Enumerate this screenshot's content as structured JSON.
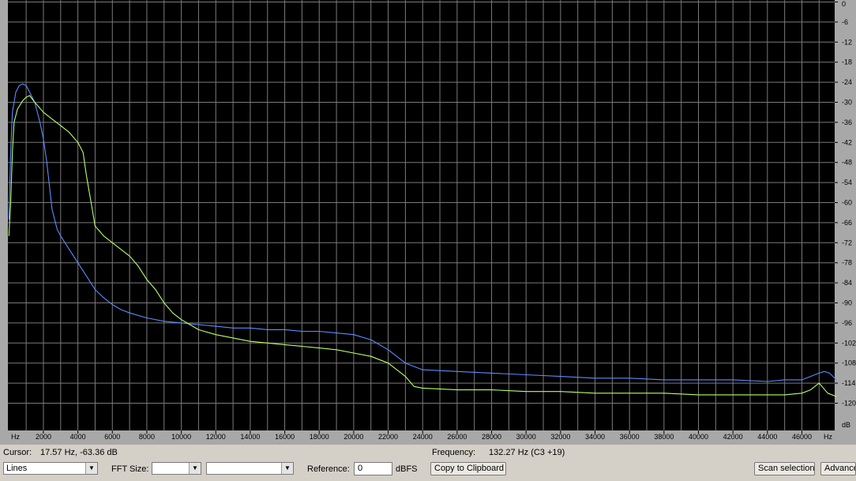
{
  "chart_data": {
    "type": "line",
    "x_unit_label": "Hz",
    "y_unit_label": "dB",
    "xlim": [
      0,
      48000
    ],
    "ylim": [
      -125,
      0
    ],
    "x_ticks": [
      "2000",
      "4000",
      "6000",
      "8000",
      "10000",
      "12000",
      "14000",
      "16000",
      "18000",
      "20000",
      "22000",
      "24000",
      "26000",
      "28000",
      "30000",
      "32000",
      "34000",
      "36000",
      "38000",
      "40000",
      "42000",
      "44000",
      "46000"
    ],
    "y_ticks": [
      "0",
      "-6",
      "-12",
      "-18",
      "-24",
      "-30",
      "-36",
      "-42",
      "-48",
      "-54",
      "-60",
      "-66",
      "-72",
      "-78",
      "-84",
      "-90",
      "-96",
      "-102",
      "-108",
      "-114",
      "-120"
    ],
    "grid": true,
    "series": [
      {
        "color": "#5b8cff",
        "x": [
          0,
          100,
          200,
          400,
          600,
          800,
          1000,
          1200,
          1500,
          1800,
          2000,
          2200,
          2500,
          2800,
          3000,
          3500,
          4000,
          4500,
          5000,
          5500,
          6000,
          6500,
          7000,
          8000,
          9000,
          10000,
          11000,
          12000,
          13000,
          14000,
          15000,
          16000,
          17000,
          18000,
          19000,
          20000,
          21000,
          22000,
          23000,
          24000,
          26000,
          28000,
          30000,
          32000,
          34000,
          36000,
          38000,
          40000,
          42000,
          44000,
          45000,
          46000,
          46500,
          47000,
          47300,
          47600,
          48000
        ],
        "y": [
          -65,
          -45,
          -33,
          -27,
          -25,
          -24.5,
          -25,
          -27,
          -30,
          -36,
          -41,
          -48,
          -62,
          -68,
          -70,
          -74,
          -78,
          -82,
          -86,
          -88.5,
          -90.5,
          -92,
          -93,
          -94.5,
          -95.5,
          -96,
          -96.5,
          -97,
          -97.5,
          -97.5,
          -98,
          -98,
          -98.5,
          -98.5,
          -99,
          -99.5,
          -101,
          -104,
          -108,
          -110,
          -110.5,
          -111,
          -111.5,
          -112,
          -112.5,
          -112.5,
          -113,
          -113,
          -113,
          -113.5,
          -113,
          -113,
          -112,
          -111,
          -110.5,
          -111,
          -113
        ]
      },
      {
        "color": "#b8ff68",
        "x": [
          0,
          100,
          200,
          300,
          500,
          800,
          1000,
          1200,
          1500,
          2000,
          2500,
          3000,
          3500,
          4000,
          4300,
          4500,
          4800,
          5000,
          5500,
          6000,
          6500,
          7000,
          7500,
          8000,
          8500,
          9000,
          9500,
          10000,
          11000,
          12000,
          13000,
          14000,
          15000,
          16000,
          17000,
          18000,
          19000,
          20000,
          21000,
          22000,
          23000,
          23500,
          24000,
          26000,
          28000,
          30000,
          32000,
          34000,
          36000,
          38000,
          40000,
          42000,
          44000,
          45000,
          46000,
          46500,
          47000,
          47500,
          48000
        ],
        "y": [
          -70,
          -60,
          -45,
          -36,
          -32,
          -29.5,
          -28.5,
          -28,
          -30,
          -33,
          -35,
          -37,
          -39,
          -42,
          -45,
          -52,
          -61,
          -67,
          -70,
          -72,
          -74,
          -76,
          -79,
          -83,
          -86,
          -90,
          -93,
          -95,
          -98,
          -99.5,
          -100.5,
          -101.5,
          -102,
          -102.5,
          -103,
          -103.5,
          -104,
          -105,
          -106,
          -108,
          -112,
          -115,
          -115.5,
          -116,
          -116,
          -116.5,
          -116.5,
          -117,
          -117,
          -117,
          -117.5,
          -117.5,
          -117.5,
          -117.5,
          -117,
          -116,
          -114,
          -117,
          -118
        ]
      }
    ]
  },
  "status": {
    "cursor_label": "Cursor:",
    "cursor_value": "17.57 Hz, -63.36 dB",
    "frequency_label": "Frequency:",
    "frequency_value": "132.27 Hz (C3 +19)"
  },
  "controls": {
    "style_value": "Lines",
    "fft_label": "FFT Size:",
    "fft_value": "",
    "window_value": "",
    "reference_label": "Reference:",
    "reference_value": "0",
    "reference_unit": "dBFS",
    "copy_button": "Copy to Clipboard",
    "scan_button": "Scan selection",
    "advanced_button": "Advanced"
  },
  "colors": {
    "plot_background": "#000000",
    "grid": "#7a7a7a",
    "axis_background": "#a8a8a8"
  }
}
